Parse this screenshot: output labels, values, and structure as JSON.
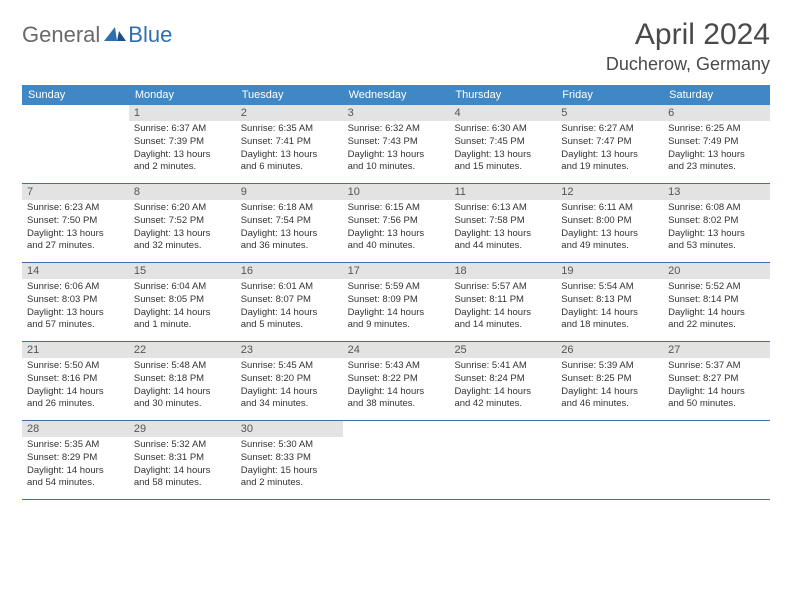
{
  "header": {
    "logo_general": "General",
    "logo_blue": "Blue",
    "month": "April 2024",
    "location": "Ducherow, Germany"
  },
  "styling": {
    "header_bg": "#3f88c5",
    "header_text": "#ffffff",
    "daynum_bg": "#e3e3e3",
    "daynum_text": "#555555",
    "body_text": "#333333",
    "week_border": "#3f6fa0",
    "title_color": "#4a4a4a",
    "logo_gray": "#6a6a6a",
    "logo_blue_color": "#2f6fb0",
    "page_bg": "#ffffff",
    "month_fontsize": 30,
    "location_fontsize": 18,
    "weekday_fontsize": 11,
    "daynum_fontsize": 11,
    "detail_fontsize": 9.5
  },
  "weekdays": [
    "Sunday",
    "Monday",
    "Tuesday",
    "Wednesday",
    "Thursday",
    "Friday",
    "Saturday"
  ],
  "weeks": [
    [
      null,
      {
        "n": "1",
        "sr": "Sunrise: 6:37 AM",
        "ss": "Sunset: 7:39 PM",
        "d1": "Daylight: 13 hours",
        "d2": "and 2 minutes."
      },
      {
        "n": "2",
        "sr": "Sunrise: 6:35 AM",
        "ss": "Sunset: 7:41 PM",
        "d1": "Daylight: 13 hours",
        "d2": "and 6 minutes."
      },
      {
        "n": "3",
        "sr": "Sunrise: 6:32 AM",
        "ss": "Sunset: 7:43 PM",
        "d1": "Daylight: 13 hours",
        "d2": "and 10 minutes."
      },
      {
        "n": "4",
        "sr": "Sunrise: 6:30 AM",
        "ss": "Sunset: 7:45 PM",
        "d1": "Daylight: 13 hours",
        "d2": "and 15 minutes."
      },
      {
        "n": "5",
        "sr": "Sunrise: 6:27 AM",
        "ss": "Sunset: 7:47 PM",
        "d1": "Daylight: 13 hours",
        "d2": "and 19 minutes."
      },
      {
        "n": "6",
        "sr": "Sunrise: 6:25 AM",
        "ss": "Sunset: 7:49 PM",
        "d1": "Daylight: 13 hours",
        "d2": "and 23 minutes."
      }
    ],
    [
      {
        "n": "7",
        "sr": "Sunrise: 6:23 AM",
        "ss": "Sunset: 7:50 PM",
        "d1": "Daylight: 13 hours",
        "d2": "and 27 minutes."
      },
      {
        "n": "8",
        "sr": "Sunrise: 6:20 AM",
        "ss": "Sunset: 7:52 PM",
        "d1": "Daylight: 13 hours",
        "d2": "and 32 minutes."
      },
      {
        "n": "9",
        "sr": "Sunrise: 6:18 AM",
        "ss": "Sunset: 7:54 PM",
        "d1": "Daylight: 13 hours",
        "d2": "and 36 minutes."
      },
      {
        "n": "10",
        "sr": "Sunrise: 6:15 AM",
        "ss": "Sunset: 7:56 PM",
        "d1": "Daylight: 13 hours",
        "d2": "and 40 minutes."
      },
      {
        "n": "11",
        "sr": "Sunrise: 6:13 AM",
        "ss": "Sunset: 7:58 PM",
        "d1": "Daylight: 13 hours",
        "d2": "and 44 minutes."
      },
      {
        "n": "12",
        "sr": "Sunrise: 6:11 AM",
        "ss": "Sunset: 8:00 PM",
        "d1": "Daylight: 13 hours",
        "d2": "and 49 minutes."
      },
      {
        "n": "13",
        "sr": "Sunrise: 6:08 AM",
        "ss": "Sunset: 8:02 PM",
        "d1": "Daylight: 13 hours",
        "d2": "and 53 minutes."
      }
    ],
    [
      {
        "n": "14",
        "sr": "Sunrise: 6:06 AM",
        "ss": "Sunset: 8:03 PM",
        "d1": "Daylight: 13 hours",
        "d2": "and 57 minutes."
      },
      {
        "n": "15",
        "sr": "Sunrise: 6:04 AM",
        "ss": "Sunset: 8:05 PM",
        "d1": "Daylight: 14 hours",
        "d2": "and 1 minute."
      },
      {
        "n": "16",
        "sr": "Sunrise: 6:01 AM",
        "ss": "Sunset: 8:07 PM",
        "d1": "Daylight: 14 hours",
        "d2": "and 5 minutes."
      },
      {
        "n": "17",
        "sr": "Sunrise: 5:59 AM",
        "ss": "Sunset: 8:09 PM",
        "d1": "Daylight: 14 hours",
        "d2": "and 9 minutes."
      },
      {
        "n": "18",
        "sr": "Sunrise: 5:57 AM",
        "ss": "Sunset: 8:11 PM",
        "d1": "Daylight: 14 hours",
        "d2": "and 14 minutes."
      },
      {
        "n": "19",
        "sr": "Sunrise: 5:54 AM",
        "ss": "Sunset: 8:13 PM",
        "d1": "Daylight: 14 hours",
        "d2": "and 18 minutes."
      },
      {
        "n": "20",
        "sr": "Sunrise: 5:52 AM",
        "ss": "Sunset: 8:14 PM",
        "d1": "Daylight: 14 hours",
        "d2": "and 22 minutes."
      }
    ],
    [
      {
        "n": "21",
        "sr": "Sunrise: 5:50 AM",
        "ss": "Sunset: 8:16 PM",
        "d1": "Daylight: 14 hours",
        "d2": "and 26 minutes."
      },
      {
        "n": "22",
        "sr": "Sunrise: 5:48 AM",
        "ss": "Sunset: 8:18 PM",
        "d1": "Daylight: 14 hours",
        "d2": "and 30 minutes."
      },
      {
        "n": "23",
        "sr": "Sunrise: 5:45 AM",
        "ss": "Sunset: 8:20 PM",
        "d1": "Daylight: 14 hours",
        "d2": "and 34 minutes."
      },
      {
        "n": "24",
        "sr": "Sunrise: 5:43 AM",
        "ss": "Sunset: 8:22 PM",
        "d1": "Daylight: 14 hours",
        "d2": "and 38 minutes."
      },
      {
        "n": "25",
        "sr": "Sunrise: 5:41 AM",
        "ss": "Sunset: 8:24 PM",
        "d1": "Daylight: 14 hours",
        "d2": "and 42 minutes."
      },
      {
        "n": "26",
        "sr": "Sunrise: 5:39 AM",
        "ss": "Sunset: 8:25 PM",
        "d1": "Daylight: 14 hours",
        "d2": "and 46 minutes."
      },
      {
        "n": "27",
        "sr": "Sunrise: 5:37 AM",
        "ss": "Sunset: 8:27 PM",
        "d1": "Daylight: 14 hours",
        "d2": "and 50 minutes."
      }
    ],
    [
      {
        "n": "28",
        "sr": "Sunrise: 5:35 AM",
        "ss": "Sunset: 8:29 PM",
        "d1": "Daylight: 14 hours",
        "d2": "and 54 minutes."
      },
      {
        "n": "29",
        "sr": "Sunrise: 5:32 AM",
        "ss": "Sunset: 8:31 PM",
        "d1": "Daylight: 14 hours",
        "d2": "and 58 minutes."
      },
      {
        "n": "30",
        "sr": "Sunrise: 5:30 AM",
        "ss": "Sunset: 8:33 PM",
        "d1": "Daylight: 15 hours",
        "d2": "and 2 minutes."
      },
      null,
      null,
      null,
      null
    ]
  ]
}
